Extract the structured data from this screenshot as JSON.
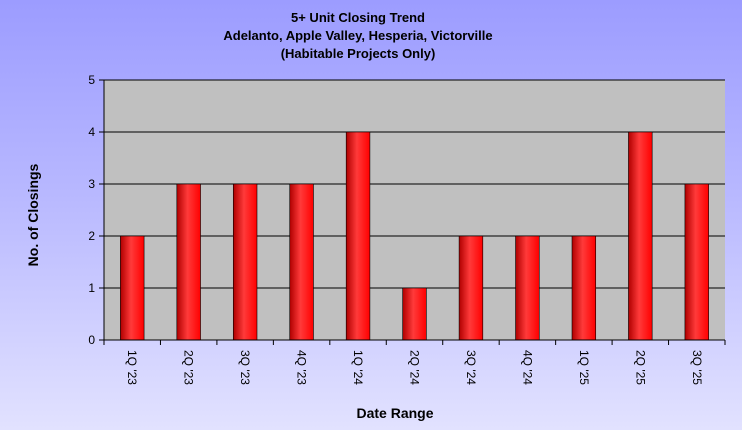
{
  "colors": {
    "plot_background": "#c0c0c0",
    "bar_fill": "#ff0000",
    "bar_highlight": "#ff3a3a",
    "bar_shadow": "#b00000",
    "gridline": "#000000"
  },
  "chart_data": {
    "type": "bar",
    "title_lines": [
      "5+ Unit Closing Trend",
      "Adelanto, Apple Valley, Hesperia, Victorville",
      "(Habitable Projects Only)"
    ],
    "xlabel": "Date Range",
    "ylabel": "No. of Closings",
    "categories": [
      "1Q 23",
      "2Q 23",
      "3Q 23",
      "4Q 23",
      "1Q 24",
      "2Q 24",
      "3Q 24",
      "4Q 24",
      "1Q 25",
      "2Q 25",
      "3Q 25"
    ],
    "category_labels": [
      "1Q '23",
      "2Q '23",
      "3Q '23",
      "4Q '23",
      "1Q '24",
      "2Q '24",
      "3Q '24",
      "4Q '24",
      "1Q '25",
      "2Q '25",
      "3Q '25"
    ],
    "values": [
      2,
      3,
      3,
      3,
      4,
      1,
      2,
      2,
      2,
      4,
      3
    ],
    "ylim": [
      0,
      5
    ],
    "yticks": [
      0,
      1,
      2,
      3,
      4,
      5
    ],
    "grid": true,
    "legend": "none"
  }
}
